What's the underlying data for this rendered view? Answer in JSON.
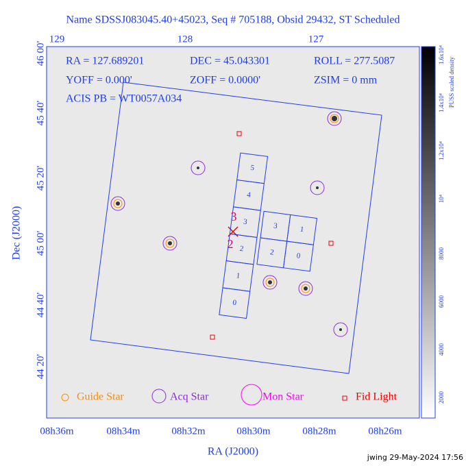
{
  "title": "Name SDSSJ083045.40+45023, Seq # 705188, Obsid 29432, ST Scheduled",
  "info": [
    "RA = 127.689201",
    "DEC = 45.043301",
    "ROLL = 277.5087",
    "YOFF = 0.000'",
    "ZOFF = 0.0000'",
    "ZSIM = 0 mm",
    "ACIS PB = WT0057A034"
  ],
  "top_ticks": [
    "129",
    "128",
    "127"
  ],
  "left_ticks": [
    "46 00'",
    "45 40'",
    "45 20'",
    "45 00'",
    "44 40'",
    "44 20'"
  ],
  "bottom_ticks": [
    "08h36m",
    "08h34m",
    "08h32m",
    "08h30m",
    "08h28m",
    "08h26m"
  ],
  "x_label": "RA (J2000)",
  "y_label": "Dec (J2000)",
  "chips_left": [
    "5",
    "4",
    "3",
    "2",
    "1",
    "0"
  ],
  "chips_right": [
    "3",
    "1",
    "2",
    "0"
  ],
  "markers": [
    "3",
    "2"
  ],
  "legend": [
    "Guide Star",
    "Acq Star",
    "Mon Star",
    "Fid Light"
  ],
  "colorbar": {
    "label": "PUSS scaled density",
    "ticks": [
      "2000",
      "4000",
      "6000",
      "8000",
      "10⁴",
      "1.2x10⁴",
      "1.4x10⁴",
      "1.6x10⁴"
    ]
  },
  "footer": "jwing 29-May-2024 17:56"
}
